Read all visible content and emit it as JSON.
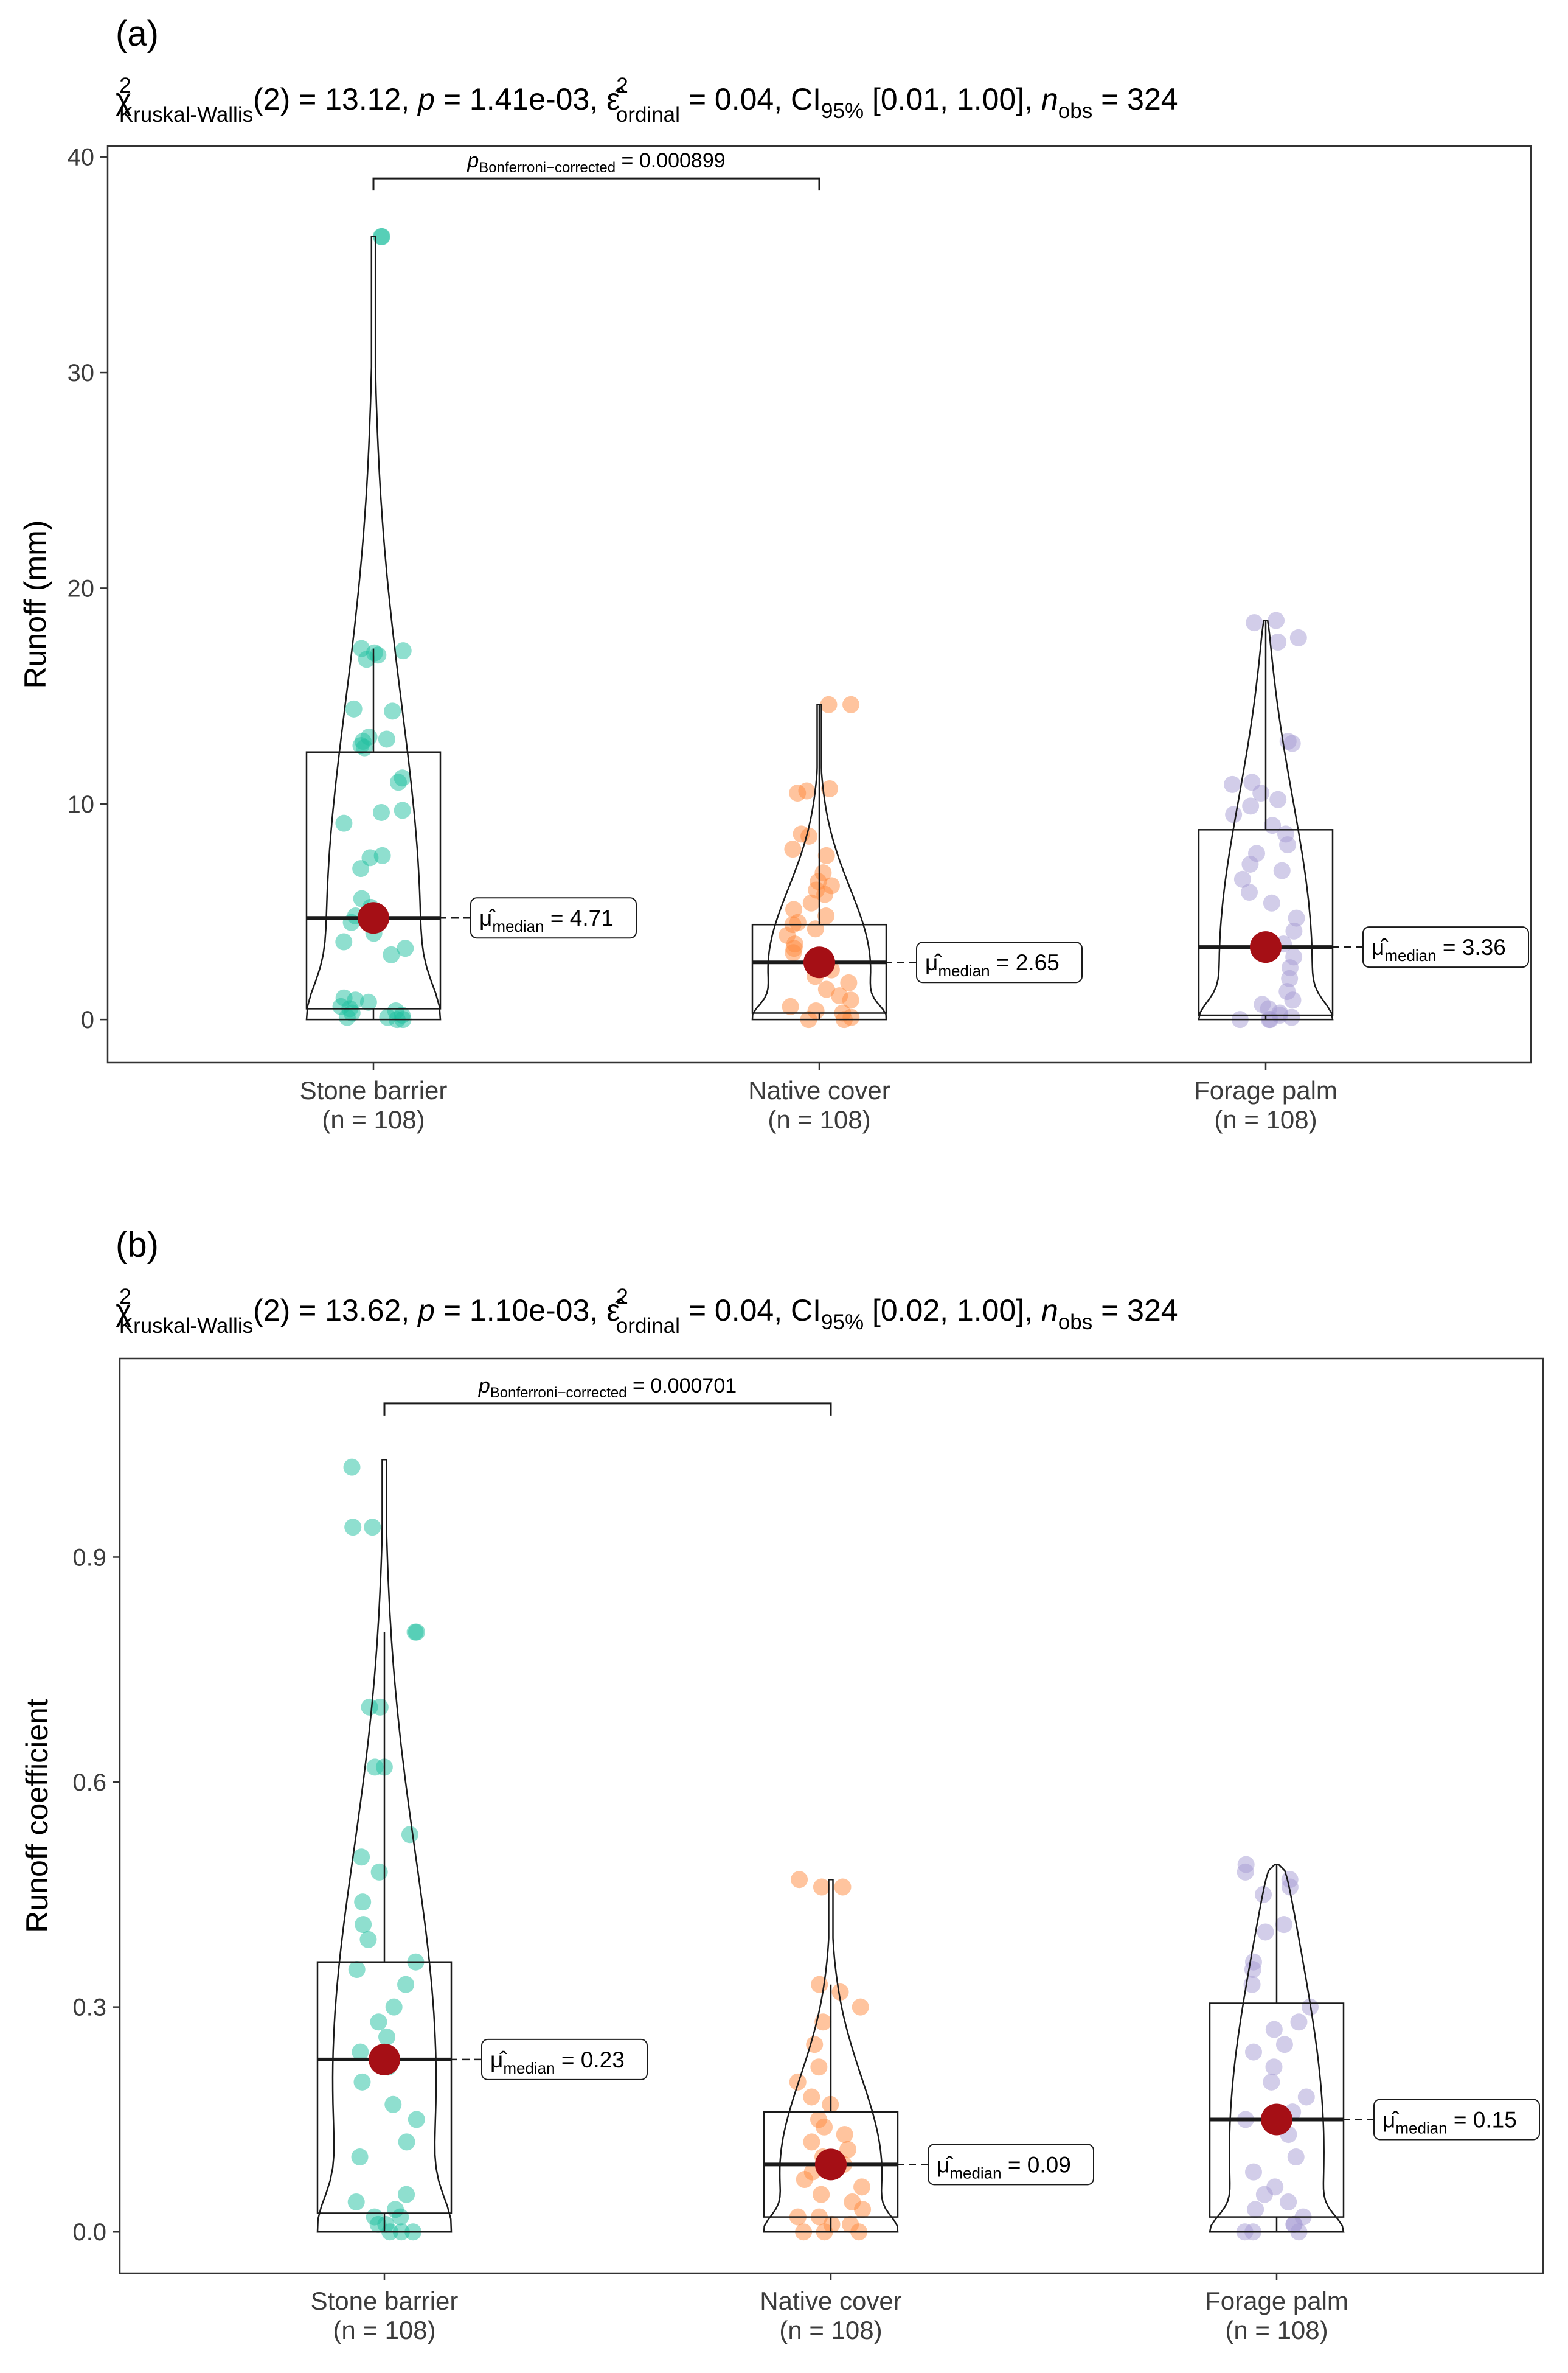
{
  "chart_data": [
    {
      "type": "violin-box-scatter",
      "panel_label": "(a)",
      "subtitle": {
        "test": "Kruskal-Wallis",
        "df": "(2)",
        "statistic": "13.12",
        "p_value": "1.41e-03",
        "effect_size": "0.04",
        "effect_label": "ordinal",
        "ci_label": "95%",
        "ci": "[0.01, 1.00]",
        "n_obs": "324"
      },
      "ylabel": "Runoff (mm)",
      "ylim": [
        -2,
        40.5
      ],
      "yticks": [
        0,
        10,
        20,
        30,
        40
      ],
      "tick_labels": [
        "0",
        "10",
        "20",
        "30",
        "40"
      ],
      "categories": [
        "Stone barrier",
        "Native cover",
        "Forage palm"
      ],
      "n_labels": [
        "(n = 108)",
        "(n = 108)",
        "(n = 108)"
      ],
      "colors": [
        "#1fbf9f",
        "#ff8a3d",
        "#a59bd4"
      ],
      "median_point_color": "#a50f15",
      "box": [
        {
          "q1": 0.5,
          "median": 4.71,
          "q3": 12.4,
          "whisker_low": 0.0,
          "whisker_high": 17.2
        },
        {
          "q1": 0.3,
          "median": 2.65,
          "q3": 4.4,
          "whisker_low": 0.0,
          "whisker_high": 14.6
        },
        {
          "q1": 0.2,
          "median": 3.36,
          "q3": 8.8,
          "whisker_low": 0.0,
          "whisker_high": 18.5
        }
      ],
      "violin_range": [
        [
          0.0,
          36.3
        ],
        [
          0.0,
          14.6
        ],
        [
          0.0,
          18.5
        ]
      ],
      "median_labels": [
        "4.71",
        "2.65",
        "3.36"
      ],
      "median_stat": "median",
      "points": [
        [
          36.3,
          36.3,
          17.2,
          17.1,
          17.0,
          16.9,
          16.7,
          14.4,
          14.3,
          13.1,
          13.0,
          12.9,
          12.7,
          12.6,
          11.2,
          11.0,
          9.7,
          9.6,
          9.1,
          7.6,
          7.5,
          7.0,
          5.6,
          5.2,
          4.8,
          4.5,
          4.0,
          3.6,
          3.3,
          3.0,
          1.0,
          0.9,
          0.8,
          0.6,
          0.5,
          0.4,
          0.3,
          0.2,
          0.1,
          0.1,
          0.0,
          0.0
        ],
        [
          14.6,
          14.6,
          10.7,
          10.6,
          10.5,
          8.6,
          8.5,
          7.9,
          7.6,
          6.8,
          6.4,
          6.2,
          6.0,
          5.8,
          5.4,
          5.1,
          4.8,
          4.5,
          4.4,
          4.2,
          3.9,
          3.5,
          3.3,
          3.1,
          2.7,
          2.5,
          2.3,
          2.0,
          1.7,
          1.4,
          1.1,
          0.9,
          0.6,
          0.4,
          0.3,
          0.1,
          0.0,
          0.0
        ],
        [
          18.5,
          18.4,
          17.7,
          17.5,
          12.9,
          12.8,
          11.0,
          10.9,
          10.5,
          10.2,
          9.9,
          9.5,
          9.0,
          8.6,
          8.1,
          7.7,
          7.2,
          6.9,
          6.5,
          5.9,
          5.4,
          4.7,
          4.1,
          3.5,
          2.9,
          2.4,
          1.9,
          1.3,
          0.9,
          0.7,
          0.5,
          0.3,
          0.2,
          0.1,
          0.0,
          0.0,
          0.0
        ]
      ],
      "comparison": {
        "from": 0,
        "to": 1,
        "y": 39.0,
        "p_label": "Bonferroni−corrected",
        "p_value": "0.000899"
      }
    },
    {
      "type": "violin-box-scatter",
      "panel_label": "(b)",
      "subtitle": {
        "test": "Kruskal-Wallis",
        "df": "(2)",
        "statistic": "13.62",
        "p_value": "1.10e-03",
        "effect_size": "0.04",
        "effect_label": "ordinal",
        "ci_label": "95%",
        "ci": "[0.02, 1.00]",
        "n_obs": "324"
      },
      "ylabel": "Runoff coefficient",
      "ylim": [
        -0.055,
        1.165
      ],
      "yticks": [
        0.0,
        0.3,
        0.6,
        0.9
      ],
      "tick_labels": [
        "0.0",
        "0.3",
        "0.6",
        "0.9"
      ],
      "categories": [
        "Stone barrier",
        "Native cover",
        "Forage palm"
      ],
      "n_labels": [
        "(n = 108)",
        "(n = 108)",
        "(n = 108)"
      ],
      "colors": [
        "#1fbf9f",
        "#ff8a3d",
        "#a59bd4"
      ],
      "median_point_color": "#a50f15",
      "box": [
        {
          "q1": 0.025,
          "median": 0.23,
          "q3": 0.36,
          "whisker_low": 0.0,
          "whisker_high": 0.8
        },
        {
          "q1": 0.02,
          "median": 0.09,
          "q3": 0.16,
          "whisker_low": 0.0,
          "whisker_high": 0.33
        },
        {
          "q1": 0.02,
          "median": 0.15,
          "q3": 0.305,
          "whisker_low": 0.0,
          "whisker_high": 0.49
        }
      ],
      "violin_range": [
        [
          0.0,
          1.03
        ],
        [
          0.0,
          0.47
        ],
        [
          0.0,
          0.49
        ]
      ],
      "median_labels": [
        "0.23",
        "0.09",
        "0.15"
      ],
      "median_stat": "median",
      "points": [
        [
          1.02,
          0.94,
          0.94,
          0.8,
          0.8,
          0.7,
          0.7,
          0.62,
          0.62,
          0.53,
          0.48,
          0.5,
          0.44,
          0.41,
          0.39,
          0.36,
          0.35,
          0.33,
          0.3,
          0.28,
          0.26,
          0.24,
          0.22,
          0.2,
          0.17,
          0.15,
          0.12,
          0.1,
          0.05,
          0.04,
          0.03,
          0.02,
          0.02,
          0.01,
          0.01,
          0.0,
          0.0,
          0.0
        ],
        [
          0.47,
          0.46,
          0.46,
          0.33,
          0.32,
          0.3,
          0.28,
          0.25,
          0.22,
          0.2,
          0.18,
          0.17,
          0.15,
          0.14,
          0.13,
          0.12,
          0.11,
          0.1,
          0.09,
          0.08,
          0.07,
          0.06,
          0.05,
          0.04,
          0.03,
          0.02,
          0.02,
          0.01,
          0.01,
          0.0,
          0.0,
          0.0
        ],
        [
          0.49,
          0.48,
          0.47,
          0.46,
          0.45,
          0.41,
          0.4,
          0.36,
          0.35,
          0.33,
          0.3,
          0.28,
          0.27,
          0.25,
          0.24,
          0.22,
          0.2,
          0.18,
          0.16,
          0.15,
          0.13,
          0.1,
          0.08,
          0.06,
          0.05,
          0.04,
          0.03,
          0.02,
          0.01,
          0.01,
          0.0,
          0.0,
          0.0
        ]
      ],
      "comparison": {
        "from": 0,
        "to": 1,
        "y": 1.105,
        "p_label": "Bonferroni−corrected",
        "p_value": "0.000701"
      }
    }
  ]
}
